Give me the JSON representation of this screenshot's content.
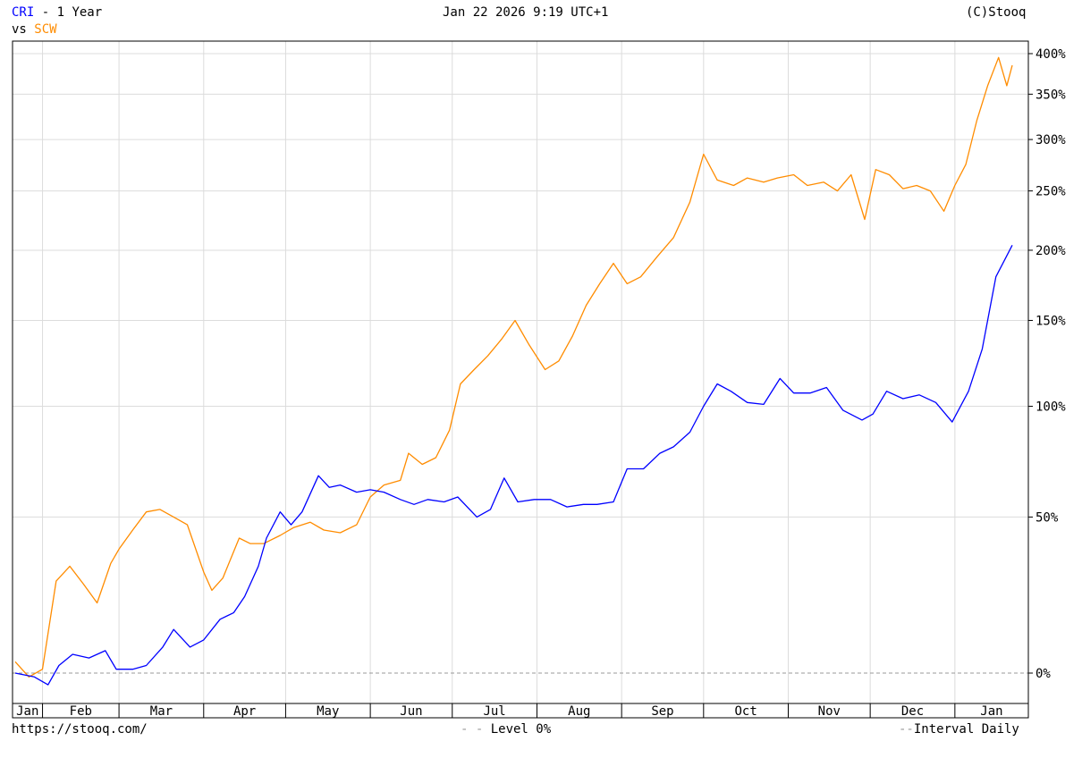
{
  "header": {
    "primary_symbol": "CRI",
    "period": " - 1 Year",
    "vs_label": "vs",
    "compare_symbol": "SCW",
    "datetime": "Jan 22 2026 9:19 UTC+1",
    "copyright": "(C)Stooq"
  },
  "footer": {
    "url": "https://stooq.com/",
    "level_label": "Level 0%",
    "interval_label": "Interval Daily"
  },
  "colors": {
    "CRI": "#0000ff",
    "SCW": "#ff8c00",
    "grid": "#dcdcdc",
    "axis": "#000000"
  },
  "chart_data": {
    "type": "line",
    "y_scale": "log(1+r)",
    "y_unit": "%",
    "ylim": [
      -10,
      415
    ],
    "y_ticks": [
      0,
      50,
      100,
      150,
      200,
      250,
      300,
      350,
      400
    ],
    "y_tick_labels": [
      "0%",
      "50%",
      "100%",
      "150%",
      "200%",
      "250%",
      "300%",
      "350%",
      "400%"
    ],
    "x_range": [
      "2025-01-22",
      "2026-01-22"
    ],
    "x_tick_labels": [
      "Jan",
      "Feb",
      "Mar",
      "Apr",
      "May",
      "Jun",
      "Jul",
      "Aug",
      "Sep",
      "Oct",
      "Nov",
      "Dec",
      "Jan"
    ],
    "x_tick_dates": [
      "2025-01-15",
      "2025-02-01",
      "2025-03-01",
      "2025-04-01",
      "2025-05-01",
      "2025-06-01",
      "2025-07-01",
      "2025-08-01",
      "2025-09-01",
      "2025-10-01",
      "2025-11-01",
      "2025-12-01",
      "2026-01-01"
    ],
    "reference_line": {
      "y": 0,
      "style": "dashed"
    },
    "grid": true,
    "series": [
      {
        "name": "CRI",
        "points": [
          [
            "2025-01-22",
            0
          ],
          [
            "2025-01-29",
            -1
          ],
          [
            "2025-02-03",
            -3
          ],
          [
            "2025-02-07",
            2
          ],
          [
            "2025-02-12",
            5
          ],
          [
            "2025-02-18",
            4
          ],
          [
            "2025-02-24",
            6
          ],
          [
            "2025-02-28",
            1
          ],
          [
            "2025-03-06",
            1
          ],
          [
            "2025-03-11",
            2
          ],
          [
            "2025-03-17",
            7
          ],
          [
            "2025-03-21",
            12
          ],
          [
            "2025-03-27",
            7
          ],
          [
            "2025-04-01",
            9
          ],
          [
            "2025-04-07",
            15
          ],
          [
            "2025-04-12",
            17
          ],
          [
            "2025-04-16",
            22
          ],
          [
            "2025-04-21",
            32
          ],
          [
            "2025-04-24",
            42
          ],
          [
            "2025-04-29",
            52
          ],
          [
            "2025-05-03",
            47
          ],
          [
            "2025-05-07",
            52
          ],
          [
            "2025-05-13",
            67
          ],
          [
            "2025-05-17",
            62
          ],
          [
            "2025-05-21",
            63
          ],
          [
            "2025-05-27",
            60
          ],
          [
            "2025-06-01",
            61
          ],
          [
            "2025-06-06",
            60
          ],
          [
            "2025-06-12",
            57
          ],
          [
            "2025-06-17",
            55
          ],
          [
            "2025-06-22",
            57
          ],
          [
            "2025-06-28",
            56
          ],
          [
            "2025-07-03",
            58
          ],
          [
            "2025-07-10",
            50
          ],
          [
            "2025-07-15",
            53
          ],
          [
            "2025-07-20",
            66
          ],
          [
            "2025-07-25",
            56
          ],
          [
            "2025-07-31",
            57
          ],
          [
            "2025-08-06",
            57
          ],
          [
            "2025-08-12",
            54
          ],
          [
            "2025-08-18",
            55
          ],
          [
            "2025-08-23",
            55
          ],
          [
            "2025-08-29",
            56
          ],
          [
            "2025-09-03",
            70
          ],
          [
            "2025-09-09",
            70
          ],
          [
            "2025-09-15",
            77
          ],
          [
            "2025-09-20",
            80
          ],
          [
            "2025-09-26",
            87
          ],
          [
            "2025-10-01",
            100
          ],
          [
            "2025-10-06",
            112
          ],
          [
            "2025-10-11",
            108
          ],
          [
            "2025-10-17",
            102
          ],
          [
            "2025-10-23",
            101
          ],
          [
            "2025-10-29",
            115
          ],
          [
            "2025-11-03",
            107
          ],
          [
            "2025-11-09",
            107
          ],
          [
            "2025-11-15",
            110
          ],
          [
            "2025-11-21",
            98
          ],
          [
            "2025-11-28",
            93
          ],
          [
            "2025-12-02",
            96
          ],
          [
            "2025-12-07",
            108
          ],
          [
            "2025-12-13",
            104
          ],
          [
            "2025-12-19",
            106
          ],
          [
            "2025-12-25",
            102
          ],
          [
            "2025-12-31",
            92
          ],
          [
            "2026-01-06",
            108
          ],
          [
            "2026-01-11",
            132
          ],
          [
            "2026-01-16",
            180
          ],
          [
            "2026-01-22",
            204
          ]
        ]
      },
      {
        "name": "SCW",
        "points": [
          [
            "2025-01-22",
            3
          ],
          [
            "2025-01-27",
            -1
          ],
          [
            "2025-02-01",
            1
          ],
          [
            "2025-02-06",
            27
          ],
          [
            "2025-02-11",
            32
          ],
          [
            "2025-02-16",
            26
          ],
          [
            "2025-02-21",
            20
          ],
          [
            "2025-02-26",
            33
          ],
          [
            "2025-03-01",
            38
          ],
          [
            "2025-03-06",
            45
          ],
          [
            "2025-03-11",
            52
          ],
          [
            "2025-03-16",
            53
          ],
          [
            "2025-03-21",
            50
          ],
          [
            "2025-03-26",
            47
          ],
          [
            "2025-04-01",
            30
          ],
          [
            "2025-04-04",
            24
          ],
          [
            "2025-04-08",
            28
          ],
          [
            "2025-04-14",
            42
          ],
          [
            "2025-04-18",
            40
          ],
          [
            "2025-04-23",
            40
          ],
          [
            "2025-04-29",
            43
          ],
          [
            "2025-05-04",
            46
          ],
          [
            "2025-05-10",
            48
          ],
          [
            "2025-05-15",
            45
          ],
          [
            "2025-05-21",
            44
          ],
          [
            "2025-05-27",
            47
          ],
          [
            "2025-06-01",
            58
          ],
          [
            "2025-06-06",
            63
          ],
          [
            "2025-06-12",
            65
          ],
          [
            "2025-06-15",
            77
          ],
          [
            "2025-06-20",
            72
          ],
          [
            "2025-06-25",
            75
          ],
          [
            "2025-06-30",
            88
          ],
          [
            "2025-07-04",
            112
          ],
          [
            "2025-07-09",
            120
          ],
          [
            "2025-07-14",
            128
          ],
          [
            "2025-07-19",
            138
          ],
          [
            "2025-07-24",
            150
          ],
          [
            "2025-07-29",
            135
          ],
          [
            "2025-08-04",
            120
          ],
          [
            "2025-08-09",
            125
          ],
          [
            "2025-08-14",
            140
          ],
          [
            "2025-08-19",
            160
          ],
          [
            "2025-08-24",
            175
          ],
          [
            "2025-08-29",
            190
          ],
          [
            "2025-09-03",
            175
          ],
          [
            "2025-09-08",
            180
          ],
          [
            "2025-09-14",
            195
          ],
          [
            "2025-09-20",
            210
          ],
          [
            "2025-09-26",
            240
          ],
          [
            "2025-10-01",
            285
          ],
          [
            "2025-10-06",
            260
          ],
          [
            "2025-10-12",
            255
          ],
          [
            "2025-10-17",
            262
          ],
          [
            "2025-10-23",
            258
          ],
          [
            "2025-10-28",
            262
          ],
          [
            "2025-11-03",
            265
          ],
          [
            "2025-11-08",
            255
          ],
          [
            "2025-11-14",
            258
          ],
          [
            "2025-11-19",
            250
          ],
          [
            "2025-11-24",
            265
          ],
          [
            "2025-11-29",
            225
          ],
          [
            "2025-12-03",
            270
          ],
          [
            "2025-12-08",
            265
          ],
          [
            "2025-12-13",
            252
          ],
          [
            "2025-12-18",
            255
          ],
          [
            "2025-12-23",
            250
          ],
          [
            "2025-12-28",
            232
          ],
          [
            "2026-01-01",
            255
          ],
          [
            "2026-01-05",
            275
          ],
          [
            "2026-01-09",
            320
          ],
          [
            "2026-01-13",
            360
          ],
          [
            "2026-01-17",
            395
          ],
          [
            "2026-01-20",
            360
          ],
          [
            "2026-01-22",
            385
          ]
        ]
      }
    ]
  }
}
